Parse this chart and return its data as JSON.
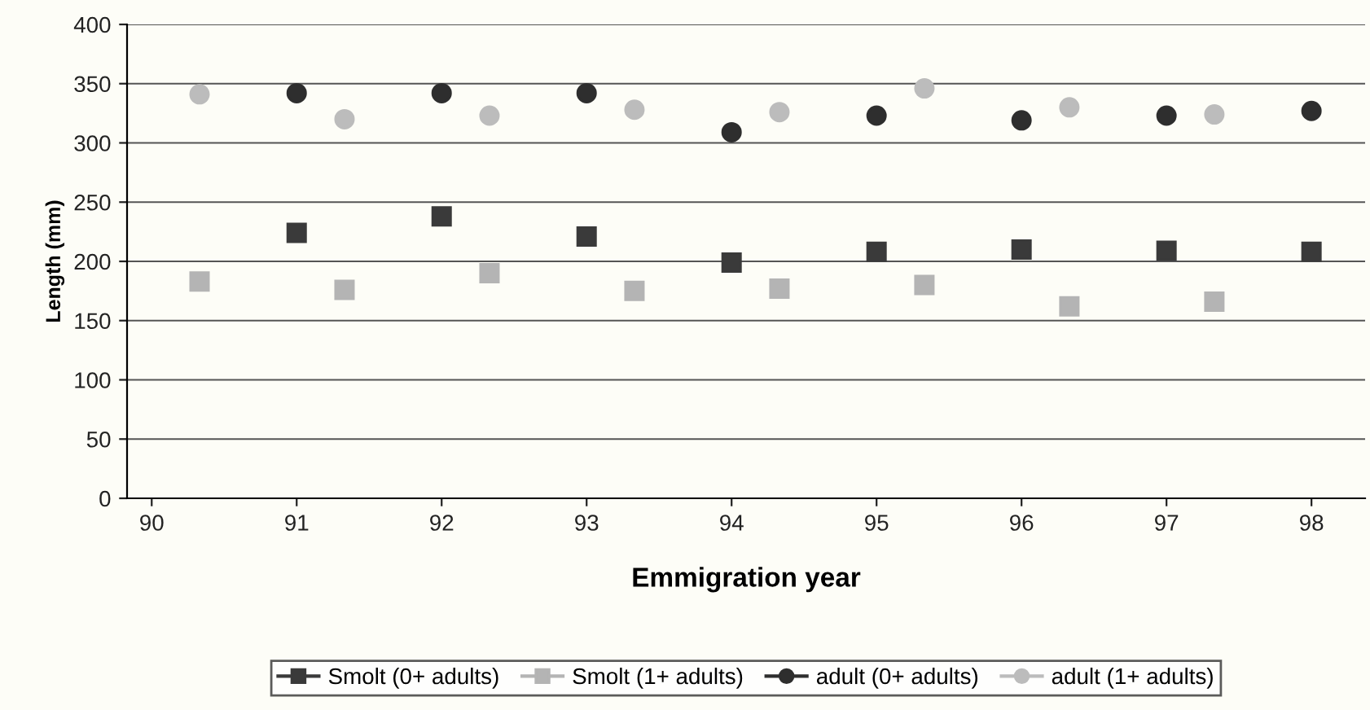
{
  "chart_data": {
    "type": "scatter",
    "xlabel": "Emmigration year",
    "ylabel": "Length (mm)",
    "xlim": [
      89.83,
      98.37
    ],
    "xticks": [
      90,
      91,
      92,
      93,
      94,
      95,
      96,
      97,
      98
    ],
    "ylim": [
      0,
      400
    ],
    "yticks": [
      0,
      50,
      100,
      150,
      200,
      250,
      300,
      350,
      400
    ],
    "grid": "y",
    "legend": "bottom",
    "series": [
      {
        "name": "Smolt (0+ adults)",
        "color": "#3a3a3a",
        "marker": "square",
        "x": [
          91,
          92,
          93,
          94,
          95,
          96,
          97,
          98
        ],
        "values": [
          224,
          238,
          221,
          199,
          208,
          210,
          209,
          208
        ]
      },
      {
        "name": "Smolt (1+ adults)",
        "color": "#b4b4b4",
        "marker": "square",
        "x": [
          90.33,
          91.33,
          92.33,
          93.33,
          94.33,
          95.33,
          96.33,
          97.33
        ],
        "values": [
          183,
          176,
          190,
          175,
          177,
          180,
          162,
          166
        ]
      },
      {
        "name": "adult (0+ adults)",
        "color": "#2e2e2e",
        "marker": "circle",
        "x": [
          91,
          92,
          93,
          94,
          95,
          96,
          97,
          98
        ],
        "values": [
          342,
          342,
          342,
          309,
          323,
          319,
          323,
          327
        ]
      },
      {
        "name": "adult (1+ adults)",
        "color": "#bcbcbc",
        "marker": "circle",
        "x": [
          90.33,
          91.33,
          92.33,
          93.33,
          94.33,
          95.33,
          96.33,
          97.33
        ],
        "values": [
          341,
          320,
          323,
          328,
          326,
          346,
          330,
          324
        ]
      }
    ]
  }
}
